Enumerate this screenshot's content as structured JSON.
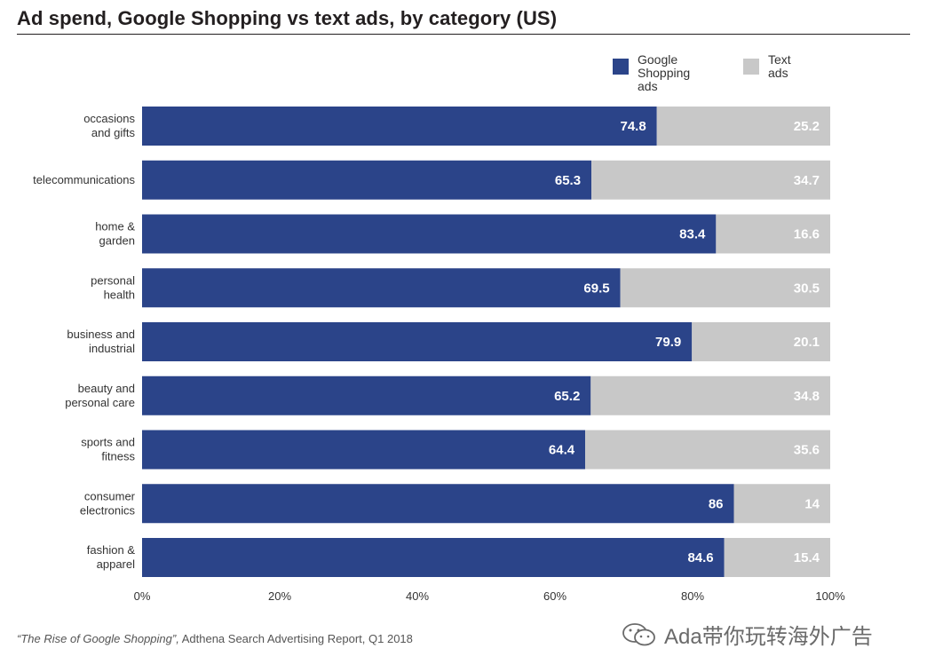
{
  "title": "Ad spend, Google Shopping vs text ads, by category (US)",
  "legend": {
    "series_1": "Google\nShopping ads",
    "series_2": "Text ads"
  },
  "colors": {
    "google_shopping": "#2b4489",
    "text_ads": "#c8c8c8",
    "value_text": "#ffffff"
  },
  "source": {
    "italic": "“The Rise of Google Shopping”,",
    "rest": " Adthena Search Advertising Report, Q1 2018"
  },
  "watermark": {
    "text": "Ada带你玩转海外广告",
    "icon": "wechat-icon"
  },
  "chart_data": {
    "type": "bar",
    "orientation": "horizontal",
    "stacked": true,
    "categories": [
      [
        "occasions",
        "and gifts"
      ],
      [
        "telecommunications"
      ],
      [
        "home &",
        "garden"
      ],
      [
        "personal",
        "health"
      ],
      [
        "business and",
        "industrial"
      ],
      [
        "beauty and",
        "personal care"
      ],
      [
        "sports and",
        "fitness"
      ],
      [
        "consumer",
        "electronics"
      ],
      [
        "fashion &",
        "apparel"
      ]
    ],
    "series": [
      {
        "name": "Google Shopping ads",
        "values": [
          74.8,
          65.3,
          83.4,
          69.5,
          79.9,
          65.2,
          64.4,
          86,
          84.6
        ]
      },
      {
        "name": "Text ads",
        "values": [
          25.2,
          34.7,
          16.6,
          30.5,
          20.1,
          34.8,
          35.6,
          14,
          15.4
        ]
      }
    ],
    "value_labels": [
      [
        "74.8",
        "25.2"
      ],
      [
        "65.3",
        "34.7"
      ],
      [
        "83.4",
        "16.6"
      ],
      [
        "69.5",
        "30.5"
      ],
      [
        "79.9",
        "20.1"
      ],
      [
        "65.2",
        "34.8"
      ],
      [
        "64.4",
        "35.6"
      ],
      [
        "86",
        "14"
      ],
      [
        "84.6",
        "15.4"
      ]
    ],
    "xlim": [
      0,
      100
    ],
    "x_ticks": [
      0,
      20,
      40,
      60,
      80,
      100
    ],
    "x_tick_labels": [
      "0%",
      "20%",
      "40%",
      "60%",
      "80%",
      "100%"
    ],
    "grid": false,
    "legend_position": "top-right"
  }
}
